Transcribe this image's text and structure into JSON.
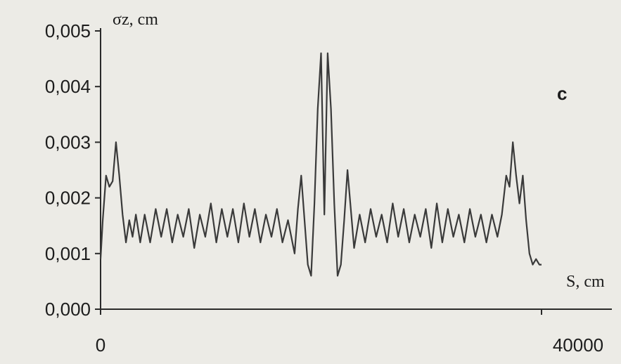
{
  "chart_data": {
    "type": "line",
    "title": "",
    "panel_label": "c",
    "ylabel": "σz, cm",
    "xlabel": "S, cm",
    "x_tick_labels": [
      "0",
      "40000"
    ],
    "y_tick_labels": [
      "0,000",
      "0,001",
      "0,002",
      "0,003",
      "0,004",
      "0,005"
    ],
    "xlim": [
      0,
      40000
    ],
    "ylim": [
      0,
      0.005
    ],
    "grid": false,
    "line_color": "#3a3a3a",
    "series": [
      {
        "x": [
          0,
          200,
          500,
          800,
          1100,
          1400,
          1700,
          2000,
          2300,
          2600,
          2900,
          3200,
          3600,
          4000,
          4500,
          5000,
          5500,
          6000,
          6500,
          7000,
          7500,
          8000,
          8500,
          9000,
          9500,
          10000,
          10500,
          11000,
          11500,
          12000,
          12500,
          13000,
          13500,
          14000,
          14500,
          15000,
          15500,
          16000,
          16500,
          17000,
          17300,
          17600,
          17900,
          18200,
          18500,
          18800,
          19100,
          19400,
          19700,
          20000,
          20300,
          20600,
          20900,
          21200,
          21500,
          21800,
          22100,
          22400,
          22700,
          23000,
          23500,
          24000,
          24500,
          25000,
          25500,
          26000,
          26500,
          27000,
          27500,
          28000,
          28500,
          29000,
          29500,
          30000,
          30500,
          31000,
          31500,
          32000,
          32500,
          33000,
          33500,
          34000,
          34500,
          35000,
          35500,
          36000,
          36400,
          36800,
          37100,
          37400,
          37700,
          38000,
          38300,
          38600,
          38900,
          39200,
          39500,
          39800,
          40000
        ],
        "y": [
          0.0009,
          0.0016,
          0.0024,
          0.0022,
          0.0023,
          0.003,
          0.0024,
          0.0017,
          0.0012,
          0.0016,
          0.0013,
          0.0017,
          0.0012,
          0.0017,
          0.0012,
          0.0018,
          0.0013,
          0.0018,
          0.0012,
          0.0017,
          0.0013,
          0.0018,
          0.0011,
          0.0017,
          0.0013,
          0.0019,
          0.0012,
          0.0018,
          0.0013,
          0.0018,
          0.0012,
          0.0019,
          0.0013,
          0.0018,
          0.0012,
          0.0017,
          0.0013,
          0.0018,
          0.0012,
          0.0016,
          0.0013,
          0.001,
          0.0018,
          0.0024,
          0.0016,
          0.0008,
          0.0006,
          0.0019,
          0.0036,
          0.0046,
          0.0017,
          0.0046,
          0.0036,
          0.0019,
          0.0006,
          0.0008,
          0.0016,
          0.0025,
          0.0018,
          0.0011,
          0.0017,
          0.0012,
          0.0018,
          0.0013,
          0.0017,
          0.0012,
          0.0019,
          0.0013,
          0.0018,
          0.0012,
          0.0017,
          0.0013,
          0.0018,
          0.0011,
          0.0019,
          0.0012,
          0.0018,
          0.0013,
          0.0017,
          0.0012,
          0.0018,
          0.0013,
          0.0017,
          0.0012,
          0.0017,
          0.0013,
          0.0017,
          0.0024,
          0.0022,
          0.003,
          0.0024,
          0.0019,
          0.0024,
          0.0016,
          0.001,
          0.0008,
          0.0009,
          0.0008,
          0.0008
        ]
      }
    ]
  }
}
